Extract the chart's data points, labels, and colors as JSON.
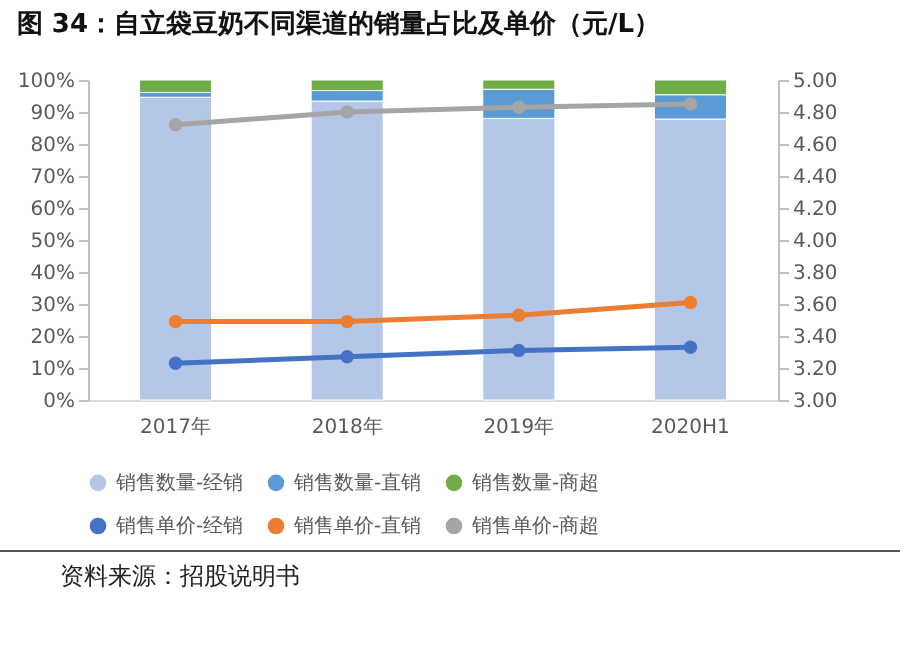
{
  "chart_data": {
    "type": "bar",
    "title": "图 34：自立袋豆奶不同渠道的销量占比及单价（元/L）",
    "annotations": [
      "资料来源：招股说明书"
    ],
    "categories": [
      "2017年",
      "2018年",
      "2019年",
      "2020H1"
    ],
    "stacked": true,
    "legend": "bottom",
    "marker": "circle",
    "grid": false,
    "ylim": [
      0,
      100
    ],
    "yticks": [
      {
        "value": 0,
        "label": "0%"
      },
      {
        "value": 10,
        "label": "10%"
      },
      {
        "value": 20,
        "label": "20%"
      },
      {
        "value": 30,
        "label": "30%"
      },
      {
        "value": 40,
        "label": "40%"
      },
      {
        "value": 50,
        "label": "50%"
      },
      {
        "value": 60,
        "label": "60%"
      },
      {
        "value": 70,
        "label": "70%"
      },
      {
        "value": 80,
        "label": "80%"
      },
      {
        "value": 90,
        "label": "90%"
      },
      {
        "value": 100,
        "label": "100%"
      }
    ],
    "y2lim": [
      3,
      5
    ],
    "y2ticks": [
      {
        "value": 3,
        "label": "3.00"
      },
      {
        "value": 3.2,
        "label": "3.20"
      },
      {
        "value": 3.4,
        "label": "3.40"
      },
      {
        "value": 3.6,
        "label": "3.60"
      },
      {
        "value": 3.8,
        "label": "3.80"
      },
      {
        "value": 4,
        "label": "4.00"
      },
      {
        "value": 4.2,
        "label": "4.20"
      },
      {
        "value": 4.4,
        "label": "4.40"
      },
      {
        "value": 4.6,
        "label": "4.60"
      },
      {
        "value": 4.8,
        "label": "4.80"
      },
      {
        "value": 5,
        "label": "5.00"
      }
    ],
    "series": [
      {
        "name": "销售数量-经销",
        "color": "#b4c7e7",
        "values": [
          94.6,
          93.4,
          88.0,
          87.8
        ]
      },
      {
        "name": "销售数量-直销",
        "color": "#5b9bd5",
        "values": [
          1.5,
          3.3,
          9.1,
          7.6
        ]
      },
      {
        "name": "销售数量-商超",
        "color": "#70ad47",
        "values": [
          3.9,
          3.3,
          2.9,
          4.6
        ]
      },
      {
        "name": "销售单价-经销",
        "type": "line",
        "axis": "y2",
        "color": "#4472c4",
        "values": [
          3.23,
          3.27,
          3.31,
          3.33
        ]
      },
      {
        "name": "销售单价-直销",
        "type": "line",
        "axis": "y2",
        "color": "#ed7d31",
        "values": [
          3.49,
          3.49,
          3.53,
          3.61
        ]
      },
      {
        "name": "销售单价-商超",
        "type": "line",
        "axis": "y2",
        "color": "#a5a5a5",
        "values": [
          4.72,
          4.8,
          4.83,
          4.85
        ]
      }
    ]
  }
}
